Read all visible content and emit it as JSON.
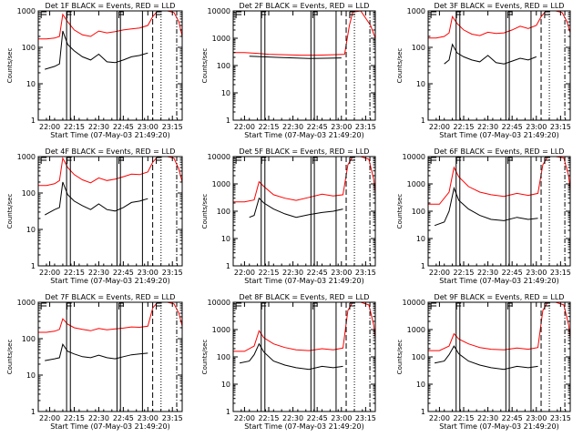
{
  "figure": {
    "background": "#ffffff",
    "events_color": "#000000",
    "lld_color": "#ff0000"
  },
  "chart_data": [
    {
      "type": "line",
      "title": "Det 1F BLACK = Events, RED = LLD",
      "xlabel": "Start Time (07-May-03 21:49:20)",
      "ylabel": "Counts/sec",
      "ylog": true,
      "ylim": [
        1,
        1000
      ],
      "yticks": [
        "1",
        "10",
        "100",
        "1000"
      ],
      "xlim": [
        "21:53",
        "23:21"
      ],
      "xticks": [
        "22:00",
        "22:15",
        "22:30",
        "22:45",
        "23:00",
        "23:15"
      ],
      "series": [
        {
          "name": "Events",
          "x": [
            "21:57",
            "22:03",
            "22:06",
            "22:08",
            "22:11",
            "22:15",
            "22:20",
            "22:25",
            "22:30",
            "22:35",
            "22:40",
            "22:45",
            "22:50",
            "22:55",
            "23:00"
          ],
          "y": [
            25,
            30,
            35,
            280,
            120,
            80,
            55,
            45,
            65,
            40,
            38,
            45,
            55,
            60,
            70
          ]
        },
        {
          "name": "LLD",
          "x": [
            "21:53",
            "21:58",
            "22:03",
            "22:06",
            "22:08",
            "22:11",
            "22:15",
            "22:20",
            "22:25",
            "22:30",
            "22:35",
            "22:40",
            "22:45",
            "22:50",
            "22:55",
            "23:00",
            "23:03",
            "23:06",
            "23:12",
            "23:16",
            "23:19",
            "23:21"
          ],
          "y": [
            170,
            170,
            180,
            200,
            800,
            500,
            300,
            220,
            200,
            280,
            250,
            270,
            300,
            320,
            340,
            400,
            700,
            1000,
            1000,
            900,
            500,
            200
          ]
        }
      ]
    },
    {
      "type": "line",
      "title": "Det 2F BLACK = Events, RED = LLD",
      "xlabel": "Start Time (07-May-03 21:49:20)",
      "ylabel": "Counts/sec",
      "ylog": true,
      "ylim": [
        1,
        10000
      ],
      "yticks": [
        "1",
        "10",
        "100",
        "1000",
        "10000"
      ],
      "xlim": [
        "21:53",
        "23:21"
      ],
      "xticks": [
        "22:00",
        "22:15",
        "22:30",
        "22:45",
        "23:00",
        "23:15"
      ],
      "series": [
        {
          "name": "Events",
          "x": [
            "22:03",
            "22:10",
            "22:20",
            "22:30",
            "22:40",
            "22:50",
            "23:00"
          ],
          "y": [
            220,
            210,
            200,
            190,
            180,
            185,
            190
          ]
        },
        {
          "name": "LLD",
          "x": [
            "21:53",
            "22:00",
            "22:08",
            "22:15",
            "22:25",
            "22:35",
            "22:45",
            "22:55",
            "23:02",
            "23:05",
            "23:07",
            "23:12",
            "23:18",
            "23:21"
          ],
          "y": [
            300,
            300,
            280,
            260,
            250,
            240,
            240,
            250,
            260,
            3000,
            9000,
            10000,
            3000,
            1000
          ]
        }
      ]
    },
    {
      "type": "line",
      "title": "Det 3F BLACK = Events, RED = LLD",
      "xlabel": "Start Time (07-May-03 21:49:20)",
      "ylabel": "Counts/sec",
      "ylog": true,
      "ylim": [
        1,
        1000
      ],
      "yticks": [
        "1",
        "10",
        "100",
        "1000"
      ],
      "xlim": [
        "21:53",
        "23:21"
      ],
      "xticks": [
        "22:00",
        "22:15",
        "22:30",
        "22:45",
        "23:00",
        "23:15"
      ],
      "series": [
        {
          "name": "Events",
          "x": [
            "22:03",
            "22:06",
            "22:08",
            "22:11",
            "22:15",
            "22:20",
            "22:25",
            "22:30",
            "22:35",
            "22:40",
            "22:45",
            "22:50",
            "22:55",
            "23:00"
          ],
          "y": [
            35,
            45,
            120,
            70,
            55,
            45,
            40,
            60,
            38,
            35,
            42,
            50,
            45,
            55
          ]
        },
        {
          "name": "LLD",
          "x": [
            "21:53",
            "21:58",
            "22:03",
            "22:06",
            "22:08",
            "22:11",
            "22:15",
            "22:20",
            "22:25",
            "22:30",
            "22:35",
            "22:40",
            "22:45",
            "22:50",
            "22:55",
            "23:00",
            "23:03",
            "23:06",
            "23:12",
            "23:16",
            "23:19",
            "23:21"
          ],
          "y": [
            180,
            180,
            200,
            250,
            700,
            450,
            300,
            230,
            210,
            260,
            240,
            250,
            300,
            380,
            330,
            400,
            700,
            1000,
            1000,
            900,
            500,
            250
          ]
        }
      ]
    },
    {
      "type": "line",
      "title": "Det 4F BLACK = Events, RED = LLD",
      "xlabel": "Start Time (07-May-03 21:49:20)",
      "ylabel": "Counts/sec",
      "ylog": true,
      "ylim": [
        1,
        1000
      ],
      "yticks": [
        "1",
        "10",
        "100",
        "1000"
      ],
      "xlim": [
        "21:53",
        "23:21"
      ],
      "xticks": [
        "22:00",
        "22:15",
        "22:30",
        "22:45",
        "23:00",
        "23:15"
      ],
      "series": [
        {
          "name": "Events",
          "x": [
            "21:57",
            "22:03",
            "22:06",
            "22:08",
            "22:11",
            "22:15",
            "22:20",
            "22:25",
            "22:30",
            "22:35",
            "22:40",
            "22:45",
            "22:50",
            "22:55",
            "23:00"
          ],
          "y": [
            25,
            35,
            40,
            200,
            90,
            60,
            45,
            35,
            50,
            35,
            32,
            40,
            55,
            60,
            70
          ]
        },
        {
          "name": "LLD",
          "x": [
            "21:53",
            "21:58",
            "22:03",
            "22:06",
            "22:08",
            "22:11",
            "22:15",
            "22:20",
            "22:25",
            "22:30",
            "22:35",
            "22:40",
            "22:45",
            "22:50",
            "22:55",
            "23:00",
            "23:03",
            "23:06",
            "23:12",
            "23:16",
            "23:19",
            "23:21"
          ],
          "y": [
            160,
            160,
            180,
            220,
            900,
            500,
            320,
            230,
            190,
            260,
            220,
            240,
            280,
            330,
            320,
            380,
            700,
            1000,
            1000,
            900,
            450,
            200
          ]
        }
      ]
    },
    {
      "type": "line",
      "title": "Det 5F BLACK = Events, RED = LLD",
      "xlabel": "Start Time (07-May-03 21:49:20)",
      "ylabel": "Counts/sec",
      "ylog": true,
      "ylim": [
        1,
        10000
      ],
      "yticks": [
        "1",
        "10",
        "100",
        "1000",
        "10000"
      ],
      "xlim": [
        "21:53",
        "23:21"
      ],
      "xticks": [
        "22:00",
        "22:15",
        "22:30",
        "22:45",
        "23:00",
        "23:15"
      ],
      "series": [
        {
          "name": "Events",
          "x": [
            "22:03",
            "22:06",
            "22:09",
            "22:12",
            "22:18",
            "22:25",
            "22:32",
            "22:40",
            "22:48",
            "22:55",
            "23:01"
          ],
          "y": [
            60,
            70,
            300,
            200,
            120,
            80,
            60,
            75,
            90,
            100,
            120
          ]
        },
        {
          "name": "LLD",
          "x": [
            "21:53",
            "22:00",
            "22:06",
            "22:09",
            "22:12",
            "22:18",
            "22:25",
            "22:32",
            "22:40",
            "22:48",
            "22:55",
            "23:01",
            "23:04",
            "23:07",
            "23:12",
            "23:17",
            "23:20",
            "23:21"
          ],
          "y": [
            220,
            220,
            260,
            1200,
            800,
            400,
            300,
            250,
            320,
            420,
            360,
            400,
            5000,
            10000,
            10000,
            8000,
            1500,
            500
          ]
        }
      ]
    },
    {
      "type": "line",
      "title": "Det 6F BLACK = Events, RED = LLD",
      "xlabel": "Start Time (07-May-03 21:49:20)",
      "ylabel": "Counts/sec",
      "ylog": true,
      "ylim": [
        1,
        10000
      ],
      "yticks": [
        "1",
        "10",
        "100",
        "1000",
        "10000"
      ],
      "xlim": [
        "21:53",
        "23:21"
      ],
      "xticks": [
        "22:00",
        "22:15",
        "22:30",
        "22:45",
        "23:00",
        "23:15"
      ],
      "series": [
        {
          "name": "Events",
          "x": [
            "21:57",
            "22:03",
            "22:06",
            "22:09",
            "22:12",
            "22:18",
            "22:25",
            "22:32",
            "22:40",
            "22:48",
            "22:55",
            "23:01"
          ],
          "y": [
            30,
            40,
            100,
            700,
            250,
            120,
            70,
            50,
            45,
            60,
            50,
            55
          ]
        },
        {
          "name": "LLD",
          "x": [
            "21:53",
            "22:00",
            "22:06",
            "22:09",
            "22:12",
            "22:18",
            "22:25",
            "22:32",
            "22:40",
            "22:48",
            "22:55",
            "23:01",
            "23:04",
            "23:07",
            "23:12",
            "23:17",
            "23:20",
            "23:21"
          ],
          "y": [
            180,
            180,
            500,
            4000,
            1800,
            800,
            500,
            400,
            350,
            450,
            380,
            450,
            5000,
            10000,
            10000,
            9000,
            2000,
            600
          ]
        }
      ]
    },
    {
      "type": "line",
      "title": "Det 7F BLACK = Events, RED = LLD",
      "xlabel": "Start Time (07-May-03 21:49:20)",
      "ylabel": "Counts/sec",
      "ylog": true,
      "ylim": [
        1,
        1000
      ],
      "yticks": [
        "1",
        "10",
        "100",
        "1000"
      ],
      "xlim": [
        "21:53",
        "23:21"
      ],
      "xticks": [
        "22:00",
        "22:15",
        "22:30",
        "22:45",
        "23:00",
        "23:15"
      ],
      "series": [
        {
          "name": "Events",
          "x": [
            "21:57",
            "22:03",
            "22:06",
            "22:08",
            "22:11",
            "22:15",
            "22:20",
            "22:25",
            "22:30",
            "22:35",
            "22:40",
            "22:45",
            "22:50",
            "22:55",
            "23:00"
          ],
          "y": [
            25,
            28,
            30,
            70,
            45,
            38,
            32,
            30,
            35,
            30,
            28,
            32,
            36,
            38,
            40
          ]
        },
        {
          "name": "LLD",
          "x": [
            "21:53",
            "21:58",
            "22:03",
            "22:06",
            "22:08",
            "22:11",
            "22:15",
            "22:20",
            "22:25",
            "22:30",
            "22:35",
            "22:40",
            "22:45",
            "22:50",
            "22:55",
            "23:00",
            "23:03",
            "23:06",
            "23:12",
            "23:16",
            "23:19",
            "23:21"
          ],
          "y": [
            150,
            150,
            160,
            180,
            350,
            250,
            200,
            180,
            165,
            190,
            175,
            185,
            195,
            210,
            205,
            220,
            700,
            1000,
            1000,
            900,
            500,
            220
          ]
        }
      ]
    },
    {
      "type": "line",
      "title": "Det 8F BLACK = Events, RED = LLD",
      "xlabel": "Start Time (07-May-03 21:49:20)",
      "ylabel": "Counts/sec",
      "ylog": true,
      "ylim": [
        1,
        10000
      ],
      "yticks": [
        "1",
        "10",
        "100",
        "1000",
        "10000"
      ],
      "xlim": [
        "21:53",
        "23:21"
      ],
      "xticks": [
        "22:00",
        "22:15",
        "22:30",
        "22:45",
        "23:00",
        "23:15"
      ],
      "series": [
        {
          "name": "Events",
          "x": [
            "21:57",
            "22:03",
            "22:06",
            "22:09",
            "22:12",
            "22:18",
            "22:25",
            "22:32",
            "22:40",
            "22:48",
            "22:55",
            "23:01"
          ],
          "y": [
            60,
            70,
            120,
            300,
            150,
            70,
            50,
            40,
            35,
            45,
            40,
            45
          ]
        },
        {
          "name": "LLD",
          "x": [
            "21:53",
            "22:00",
            "22:06",
            "22:09",
            "22:12",
            "22:18",
            "22:25",
            "22:32",
            "22:40",
            "22:48",
            "22:55",
            "23:01",
            "23:04",
            "23:07",
            "23:12",
            "23:17",
            "23:20",
            "23:21"
          ],
          "y": [
            160,
            160,
            250,
            900,
            500,
            300,
            220,
            180,
            170,
            200,
            180,
            210,
            5000,
            10000,
            10000,
            8000,
            1500,
            500
          ]
        }
      ]
    },
    {
      "type": "line",
      "title": "Det 9F BLACK = Events, RED = LLD",
      "xlabel": "Start Time (07-May-03 21:49:20)",
      "ylabel": "Counts/sec",
      "ylog": true,
      "ylim": [
        1,
        10000
      ],
      "yticks": [
        "1",
        "10",
        "100",
        "1000",
        "10000"
      ],
      "xlim": [
        "21:53",
        "23:21"
      ],
      "xticks": [
        "22:00",
        "22:15",
        "22:30",
        "22:45",
        "23:00",
        "23:15"
      ],
      "series": [
        {
          "name": "Events",
          "x": [
            "21:57",
            "22:03",
            "22:06",
            "22:09",
            "22:12",
            "22:18",
            "22:25",
            "22:32",
            "22:40",
            "22:48",
            "22:55",
            "23:01"
          ],
          "y": [
            60,
            70,
            120,
            250,
            130,
            70,
            50,
            40,
            35,
            45,
            40,
            45
          ]
        },
        {
          "name": "LLD",
          "x": [
            "21:53",
            "22:00",
            "22:06",
            "22:09",
            "22:12",
            "22:18",
            "22:25",
            "22:32",
            "22:40",
            "22:48",
            "22:55",
            "23:01",
            "23:04",
            "23:07",
            "23:12",
            "23:17",
            "23:20",
            "23:21"
          ],
          "y": [
            170,
            170,
            250,
            700,
            450,
            300,
            220,
            190,
            180,
            210,
            190,
            220,
            5000,
            10000,
            10000,
            8000,
            1500,
            500
          ]
        }
      ]
    }
  ]
}
